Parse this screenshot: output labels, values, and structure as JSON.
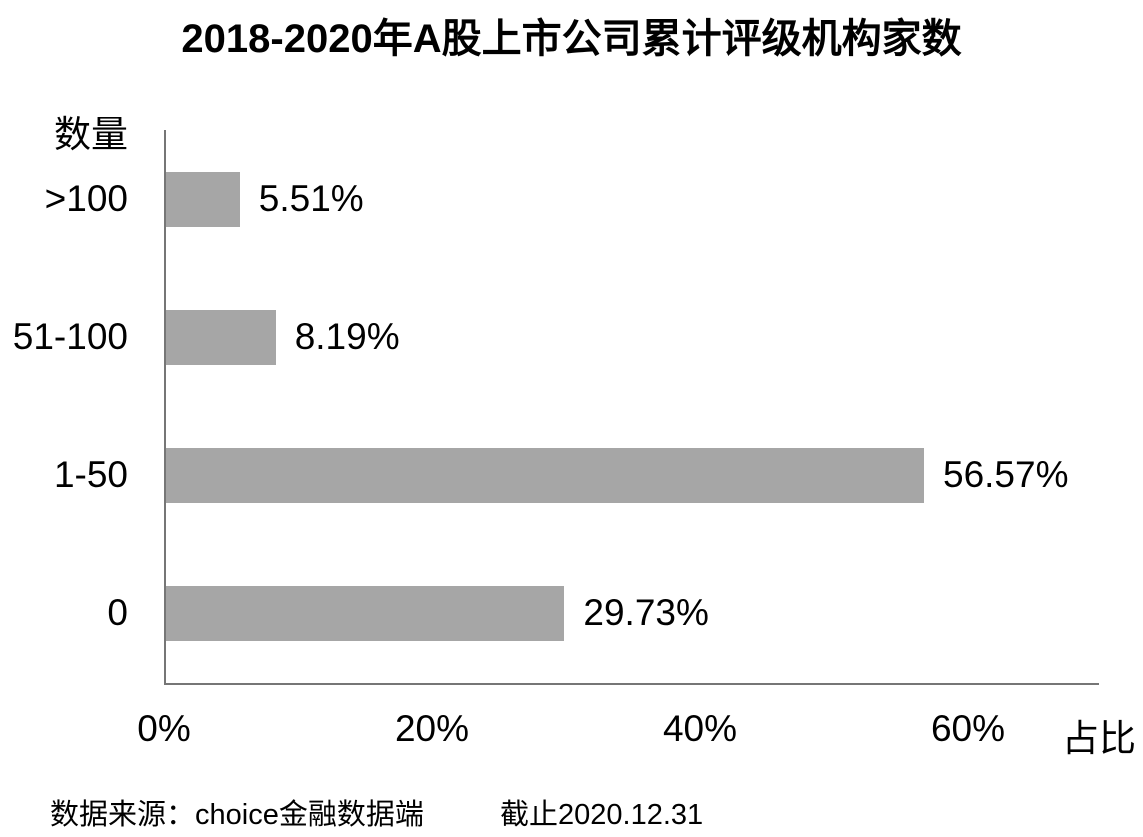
{
  "chart_data": {
    "type": "bar",
    "orientation": "horizontal",
    "title": "2018-2020年A股上市公司累计评级机构家数",
    "ylabel": "数量",
    "xlabel": "占比",
    "categories": [
      ">100",
      "51-100",
      "1-50",
      "0"
    ],
    "values": [
      5.51,
      8.19,
      56.57,
      29.73
    ],
    "data_labels": [
      "5.51%",
      "8.19%",
      "56.57%",
      "29.73%"
    ],
    "x_tick_labels": [
      "0%",
      "20%",
      "40%",
      "60%"
    ],
    "x_tick_values": [
      0,
      20,
      40,
      60
    ],
    "xlim": [
      0,
      69.6
    ],
    "grid": false,
    "legend": "none",
    "bar_color": "#a6a6a6",
    "axis_color": "#767676",
    "text_color": "#000000"
  },
  "footer": {
    "source": "数据来源：choice金融数据端",
    "cutoff": "截止2020.12.31"
  }
}
